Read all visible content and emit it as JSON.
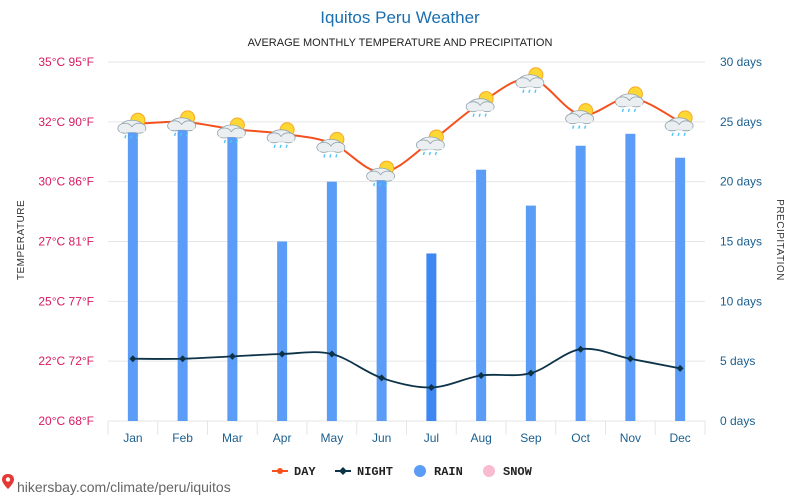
{
  "title": "Iquitos Peru Weather",
  "subtitle": "AVERAGE MONTHLY TEMPERATURE AND PRECIPITATION",
  "left_axis_title": "TEMPERATURE",
  "right_axis_title": "PRECIPITATION",
  "source": "hikersbay.com/climate/peru/iquitos",
  "legend": [
    {
      "label": "DAY",
      "color": "#f4511e",
      "icon": "line-dot-icon"
    },
    {
      "label": "NIGHT",
      "color": "#0d3349",
      "icon": "line-diamond-icon"
    },
    {
      "label": "RAIN",
      "color": "#5b9cf6",
      "icon": "circle-icon"
    },
    {
      "label": "SNOW",
      "color": "#f8bbd0",
      "icon": "circle-icon"
    }
  ],
  "colors": {
    "title": "#1a6fb0",
    "left_axis": "#d81b60",
    "right_axis": "#1a5f8f",
    "grid": "#e6e6e6",
    "rain": "#5b9cf6",
    "rain_highlight": "#3f86f5",
    "day": "#f4511e",
    "night": "#0d3349"
  },
  "chart_data": {
    "type": "bar",
    "categories": [
      "Jan",
      "Feb",
      "Mar",
      "Apr",
      "May",
      "Jun",
      "Jul",
      "Aug",
      "Sep",
      "Oct",
      "Nov",
      "Dec"
    ],
    "left_axis": {
      "range_c": [
        20,
        35
      ],
      "ticks": [
        {
          "value": 35,
          "label": "35°C 95°F"
        },
        {
          "value": 32.5,
          "label": "32°C 90°F"
        },
        {
          "value": 30,
          "label": "30°C 86°F"
        },
        {
          "value": 27.5,
          "label": "27°C 81°F"
        },
        {
          "value": 25,
          "label": "25°C 77°F"
        },
        {
          "value": 22.5,
          "label": "22°C 72°F"
        },
        {
          "value": 20,
          "label": "20°C 68°F"
        }
      ]
    },
    "right_axis": {
      "range_days": [
        0,
        30
      ],
      "ticks": [
        {
          "value": 30,
          "label": "30 days"
        },
        {
          "value": 25,
          "label": "25 days"
        },
        {
          "value": 20,
          "label": "20 days"
        },
        {
          "value": 15,
          "label": "15 days"
        },
        {
          "value": 10,
          "label": "10 days"
        },
        {
          "value": 5,
          "label": "5 days"
        },
        {
          "value": 0,
          "label": "0 days"
        }
      ]
    },
    "series": [
      {
        "name": "DAY",
        "type": "line",
        "axis": "left",
        "values": [
          32.4,
          32.5,
          32.2,
          32.0,
          31.6,
          30.4,
          31.7,
          33.3,
          34.3,
          32.8,
          33.5,
          32.5
        ]
      },
      {
        "name": "NIGHT",
        "type": "line",
        "axis": "left",
        "values": [
          22.6,
          22.6,
          22.7,
          22.8,
          22.8,
          21.8,
          21.4,
          21.9,
          22.0,
          23.0,
          22.6,
          22.2
        ]
      },
      {
        "name": "RAIN",
        "type": "bar",
        "axis": "right",
        "values": [
          24.5,
          24.5,
          24,
          15,
          20,
          21,
          14,
          21,
          18,
          23,
          24,
          22
        ]
      }
    ],
    "weather_icons": [
      "rain-sun-icon",
      "rain-sun-icon",
      "rain-sun-icon",
      "rain-sun-icon",
      "rain-sun-icon",
      "rain-sun-icon",
      "rain-sun-icon",
      "rain-sun-icon",
      "rain-sun-icon",
      "rain-sun-icon",
      "rain-sun-icon",
      "rain-sun-icon"
    ],
    "grid": true,
    "legend_position": "bottom"
  }
}
